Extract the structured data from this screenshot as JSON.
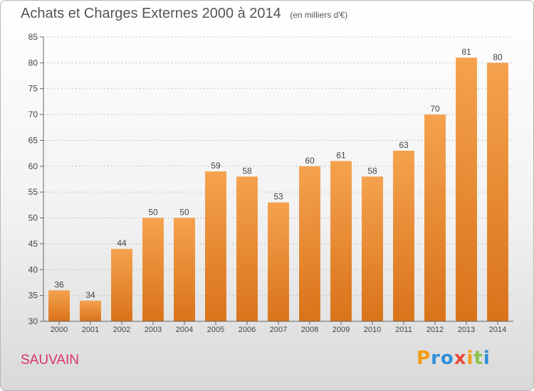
{
  "chart_data": {
    "type": "bar",
    "title": "Achats et Charges Externes 2000 à 2014",
    "subtitle": "(en milliers d'€)",
    "categories": [
      "2000",
      "2001",
      "2002",
      "2003",
      "2004",
      "2005",
      "2006",
      "2007",
      "2008",
      "2009",
      "2010",
      "2011",
      "2012",
      "2013",
      "2014"
    ],
    "values": [
      36,
      34,
      44,
      50,
      50,
      59,
      58,
      53,
      60,
      61,
      58,
      63,
      70,
      81,
      80
    ],
    "ylim": [
      30,
      85
    ],
    "yticks": [
      30,
      35,
      40,
      45,
      50,
      55,
      60,
      65,
      70,
      75,
      80,
      85
    ],
    "grid": true,
    "bar_color": "#f0943a"
  },
  "commune": "SAUVAIN",
  "logo": {
    "letters": [
      "P",
      "r",
      "o",
      "x",
      "i",
      "t",
      "i"
    ]
  }
}
